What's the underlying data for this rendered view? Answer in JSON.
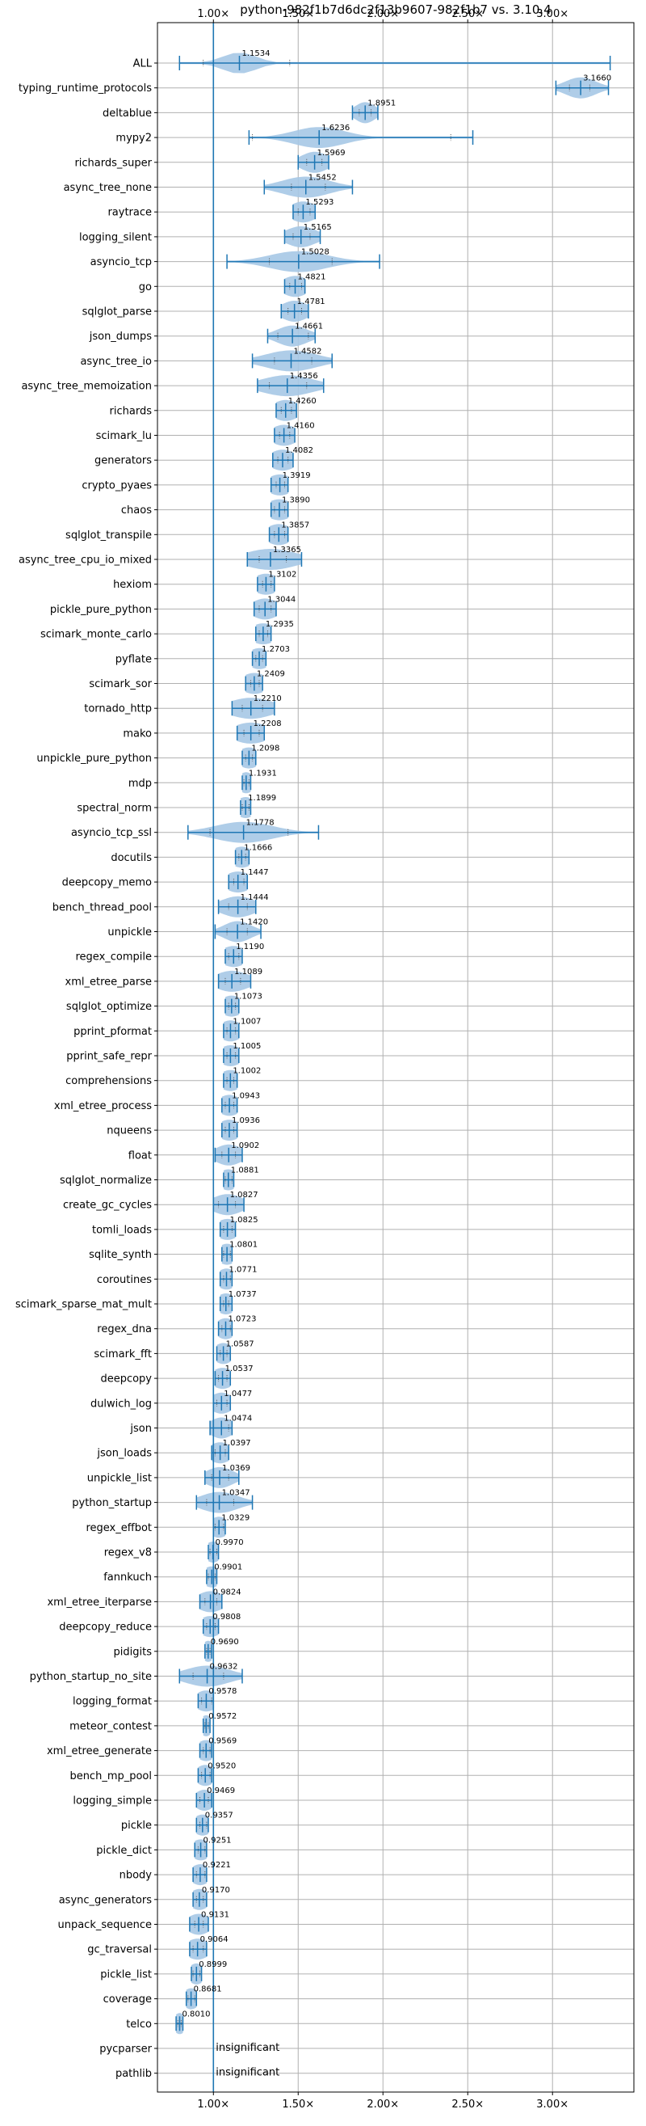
{
  "chart_data": {
    "type": "violin",
    "title": "python-982f1b7d6dc2f13b9607-982f1b7 vs. 3.10.4",
    "xlabel": "",
    "ylabel": "",
    "xlim": [
      0.67,
      3.48
    ],
    "x_ticks": [
      1.0,
      1.5,
      2.0,
      2.5,
      3.0
    ],
    "x_tick_labels": [
      "1.00×",
      "1.50×",
      "2.00×",
      "2.50×",
      "3.00×"
    ],
    "reference_line": 1.0,
    "grid": true,
    "color": "#1f77b4",
    "violin_color": "#a6c8e6",
    "benchmarks": [
      {
        "name": "ALL",
        "mean": 1.1534,
        "label": "1.1534",
        "min": 0.8,
        "max": 3.34,
        "q1": 0.94,
        "q3": 1.45,
        "spread": 0.1
      },
      {
        "name": "typing_runtime_protocols",
        "mean": 3.166,
        "label": "3.1660",
        "min": 3.02,
        "max": 3.33,
        "q1": 3.1,
        "q3": 3.22,
        "spread": 0.09
      },
      {
        "name": "deltablue",
        "mean": 1.8951,
        "label": "1.8951",
        "min": 1.82,
        "max": 1.97,
        "q1": 1.86,
        "q3": 1.93,
        "spread": 0.06
      },
      {
        "name": "mypy2",
        "mean": 1.6236,
        "label": "1.6236",
        "min": 1.21,
        "max": 2.53,
        "q1": 1.23,
        "q3": 2.4,
        "spread": 0.15
      },
      {
        "name": "richards_super",
        "mean": 1.5969,
        "label": "1.5969",
        "min": 1.5,
        "max": 1.68,
        "q1": 1.55,
        "q3": 1.64,
        "spread": 0.08
      },
      {
        "name": "async_tree_none",
        "mean": 1.5452,
        "label": "1.5452",
        "min": 1.3,
        "max": 1.82,
        "q1": 1.46,
        "q3": 1.66,
        "spread": 0.14
      },
      {
        "name": "raytrace",
        "mean": 1.5293,
        "label": "1.5293",
        "min": 1.47,
        "max": 1.6,
        "q1": 1.5,
        "q3": 1.57,
        "spread": 0.08
      },
      {
        "name": "logging_silent",
        "mean": 1.5165,
        "label": "1.5165",
        "min": 1.42,
        "max": 1.63,
        "q1": 1.47,
        "q3": 1.57,
        "spread": 0.09
      },
      {
        "name": "asyncio_tcp",
        "mean": 1.5028,
        "label": "1.5028",
        "min": 1.08,
        "max": 1.98,
        "q1": 1.33,
        "q3": 1.7,
        "spread": 0.17
      },
      {
        "name": "go",
        "mean": 1.4821,
        "label": "1.4821",
        "min": 1.42,
        "max": 1.54,
        "q1": 1.45,
        "q3": 1.52,
        "spread": 0.08
      },
      {
        "name": "sqlglot_parse",
        "mean": 1.4781,
        "label": "1.4781",
        "min": 1.4,
        "max": 1.56,
        "q1": 1.44,
        "q3": 1.52,
        "spread": 0.08
      },
      {
        "name": "json_dumps",
        "mean": 1.4661,
        "label": "1.4661",
        "min": 1.32,
        "max": 1.6,
        "q1": 1.38,
        "q3": 1.56,
        "spread": 0.09
      },
      {
        "name": "async_tree_io",
        "mean": 1.4582,
        "label": "1.4582",
        "min": 1.23,
        "max": 1.7,
        "q1": 1.36,
        "q3": 1.58,
        "spread": 0.15
      },
      {
        "name": "async_tree_memoization",
        "mean": 1.4356,
        "label": "1.4356",
        "min": 1.26,
        "max": 1.65,
        "q1": 1.33,
        "q3": 1.55,
        "spread": 0.15
      },
      {
        "name": "richards",
        "mean": 1.426,
        "label": "1.4260",
        "min": 1.37,
        "max": 1.49,
        "q1": 1.4,
        "q3": 1.46,
        "spread": 0.08
      },
      {
        "name": "scimark_lu",
        "mean": 1.416,
        "label": "1.4160",
        "min": 1.36,
        "max": 1.48,
        "q1": 1.39,
        "q3": 1.45,
        "spread": 0.08
      },
      {
        "name": "generators",
        "mean": 1.4082,
        "label": "1.4082",
        "min": 1.35,
        "max": 1.47,
        "q1": 1.38,
        "q3": 1.44,
        "spread": 0.08
      },
      {
        "name": "crypto_pyaes",
        "mean": 1.3919,
        "label": "1.3919",
        "min": 1.34,
        "max": 1.44,
        "q1": 1.37,
        "q3": 1.42,
        "spread": 0.08
      },
      {
        "name": "chaos",
        "mean": 1.389,
        "label": "1.3890",
        "min": 1.34,
        "max": 1.44,
        "q1": 1.36,
        "q3": 1.42,
        "spread": 0.08
      },
      {
        "name": "sqlglot_transpile",
        "mean": 1.3857,
        "label": "1.3857",
        "min": 1.33,
        "max": 1.44,
        "q1": 1.36,
        "q3": 1.42,
        "spread": 0.08
      },
      {
        "name": "async_tree_cpu_io_mixed",
        "mean": 1.3365,
        "label": "1.3365",
        "min": 1.2,
        "max": 1.52,
        "q1": 1.27,
        "q3": 1.43,
        "spread": 0.15
      },
      {
        "name": "hexiom",
        "mean": 1.3102,
        "label": "1.3102",
        "min": 1.26,
        "max": 1.36,
        "q1": 1.29,
        "q3": 1.34,
        "spread": 0.08
      },
      {
        "name": "pickle_pure_python",
        "mean": 1.3044,
        "label": "1.3044",
        "min": 1.24,
        "max": 1.37,
        "q1": 1.27,
        "q3": 1.34,
        "spread": 0.08
      },
      {
        "name": "scimark_monte_carlo",
        "mean": 1.2935,
        "label": "1.2935",
        "min": 1.25,
        "max": 1.34,
        "q1": 1.27,
        "q3": 1.32,
        "spread": 0.08
      },
      {
        "name": "pyflate",
        "mean": 1.2703,
        "label": "1.2703",
        "min": 1.23,
        "max": 1.31,
        "q1": 1.25,
        "q3": 1.29,
        "spread": 0.07
      },
      {
        "name": "scimark_sor",
        "mean": 1.2409,
        "label": "1.2409",
        "min": 1.19,
        "max": 1.29,
        "q1": 1.22,
        "q3": 1.27,
        "spread": 0.08
      },
      {
        "name": "tornado_http",
        "mean": 1.221,
        "label": "1.2210",
        "min": 1.11,
        "max": 1.36,
        "q1": 1.17,
        "q3": 1.29,
        "spread": 0.13
      },
      {
        "name": "mako",
        "mean": 1.2208,
        "label": "1.2208",
        "min": 1.14,
        "max": 1.3,
        "q1": 1.18,
        "q3": 1.27,
        "spread": 0.11
      },
      {
        "name": "unpickle_pure_python",
        "mean": 1.2098,
        "label": "1.2098",
        "min": 1.17,
        "max": 1.25,
        "q1": 1.19,
        "q3": 1.23,
        "spread": 0.07
      },
      {
        "name": "mdp",
        "mean": 1.1931,
        "label": "1.1931",
        "min": 1.17,
        "max": 1.22,
        "q1": 1.18,
        "q3": 1.21,
        "spread": 0.05
      },
      {
        "name": "spectral_norm",
        "mean": 1.1899,
        "label": "1.1899",
        "min": 1.16,
        "max": 1.22,
        "q1": 1.17,
        "q3": 1.21,
        "spread": 0.06
      },
      {
        "name": "asyncio_tcp_ssl",
        "mean": 1.1778,
        "label": "1.1778",
        "min": 0.85,
        "max": 1.62,
        "q1": 0.98,
        "q3": 1.44,
        "spread": 0.17
      },
      {
        "name": "docutils",
        "mean": 1.1666,
        "label": "1.1666",
        "min": 1.13,
        "max": 1.21,
        "q1": 1.15,
        "q3": 1.19,
        "spread": 0.07
      },
      {
        "name": "deepcopy_memo",
        "mean": 1.1447,
        "label": "1.1447",
        "min": 1.09,
        "max": 1.2,
        "q1": 1.12,
        "q3": 1.18,
        "spread": 0.08
      },
      {
        "name": "bench_thread_pool",
        "mean": 1.1444,
        "label": "1.1444",
        "min": 1.03,
        "max": 1.25,
        "q1": 1.09,
        "q3": 1.2,
        "spread": 0.1
      },
      {
        "name": "unpickle",
        "mean": 1.142,
        "label": "1.1420",
        "min": 1.01,
        "max": 1.28,
        "q1": 1.08,
        "q3": 1.2,
        "spread": 0.08
      },
      {
        "name": "regex_compile",
        "mean": 1.119,
        "label": "1.1190",
        "min": 1.07,
        "max": 1.17,
        "q1": 1.09,
        "q3": 1.15,
        "spread": 0.08
      },
      {
        "name": "xml_etree_parse",
        "mean": 1.1089,
        "label": "1.1089",
        "min": 1.03,
        "max": 1.22,
        "q1": 1.07,
        "q3": 1.16,
        "spread": 0.1
      },
      {
        "name": "sqlglot_optimize",
        "mean": 1.1073,
        "label": "1.1073",
        "min": 1.07,
        "max": 1.15,
        "q1": 1.09,
        "q3": 1.13,
        "spread": 0.07
      },
      {
        "name": "pprint_pformat",
        "mean": 1.1007,
        "label": "1.1007",
        "min": 1.06,
        "max": 1.15,
        "q1": 1.08,
        "q3": 1.13,
        "spread": 0.07
      },
      {
        "name": "pprint_safe_repr",
        "mean": 1.1005,
        "label": "1.1005",
        "min": 1.06,
        "max": 1.15,
        "q1": 1.08,
        "q3": 1.13,
        "spread": 0.07
      },
      {
        "name": "comprehensions",
        "mean": 1.1002,
        "label": "1.1002",
        "min": 1.06,
        "max": 1.14,
        "q1": 1.08,
        "q3": 1.12,
        "spread": 0.07
      },
      {
        "name": "xml_etree_process",
        "mean": 1.0943,
        "label": "1.0943",
        "min": 1.05,
        "max": 1.14,
        "q1": 1.07,
        "q3": 1.12,
        "spread": 0.07
      },
      {
        "name": "nqueens",
        "mean": 1.0936,
        "label": "1.0936",
        "min": 1.05,
        "max": 1.14,
        "q1": 1.07,
        "q3": 1.12,
        "spread": 0.07
      },
      {
        "name": "float",
        "mean": 1.0902,
        "label": "1.0902",
        "min": 1.01,
        "max": 1.17,
        "q1": 1.05,
        "q3": 1.13,
        "spread": 0.08
      },
      {
        "name": "sqlglot_normalize",
        "mean": 1.0881,
        "label": "1.0881",
        "min": 1.06,
        "max": 1.12,
        "q1": 1.07,
        "q3": 1.11,
        "spread": 0.06
      },
      {
        "name": "create_gc_cycles",
        "mean": 1.0827,
        "label": "1.0827",
        "min": 1.0,
        "max": 1.18,
        "q1": 1.03,
        "q3": 1.13,
        "spread": 0.09
      },
      {
        "name": "tomli_loads",
        "mean": 1.0825,
        "label": "1.0825",
        "min": 1.04,
        "max": 1.13,
        "q1": 1.06,
        "q3": 1.11,
        "spread": 0.07
      },
      {
        "name": "sqlite_synth",
        "mean": 1.0801,
        "label": "1.0801",
        "min": 1.05,
        "max": 1.11,
        "q1": 1.06,
        "q3": 1.1,
        "spread": 0.06
      },
      {
        "name": "coroutines",
        "mean": 1.0771,
        "label": "1.0771",
        "min": 1.04,
        "max": 1.11,
        "q1": 1.06,
        "q3": 1.1,
        "spread": 0.06
      },
      {
        "name": "scimark_sparse_mat_mult",
        "mean": 1.0737,
        "label": "1.0737",
        "min": 1.04,
        "max": 1.11,
        "q1": 1.06,
        "q3": 1.09,
        "spread": 0.06
      },
      {
        "name": "regex_dna",
        "mean": 1.0723,
        "label": "1.0723",
        "min": 1.03,
        "max": 1.11,
        "q1": 1.05,
        "q3": 1.1,
        "spread": 0.06
      },
      {
        "name": "scimark_fft",
        "mean": 1.0587,
        "label": "1.0587",
        "min": 1.02,
        "max": 1.1,
        "q1": 1.04,
        "q3": 1.08,
        "spread": 0.06
      },
      {
        "name": "deepcopy",
        "mean": 1.0537,
        "label": "1.0537",
        "min": 1.01,
        "max": 1.1,
        "q1": 1.03,
        "q3": 1.08,
        "spread": 0.07
      },
      {
        "name": "dulwich_log",
        "mean": 1.0477,
        "label": "1.0477",
        "min": 1.0,
        "max": 1.1,
        "q1": 1.02,
        "q3": 1.08,
        "spread": 0.07
      },
      {
        "name": "json",
        "mean": 1.0474,
        "label": "1.0474",
        "min": 0.98,
        "max": 1.11,
        "q1": 1.0,
        "q3": 1.09,
        "spread": 0.07
      },
      {
        "name": "json_loads",
        "mean": 1.0397,
        "label": "1.0397",
        "min": 0.99,
        "max": 1.09,
        "q1": 1.01,
        "q3": 1.07,
        "spread": 0.07
      },
      {
        "name": "unpickle_list",
        "mean": 1.0369,
        "label": "1.0369",
        "min": 0.95,
        "max": 1.15,
        "q1": 0.99,
        "q3": 1.09,
        "spread": 0.08
      },
      {
        "name": "python_startup",
        "mean": 1.0347,
        "label": "1.0347",
        "min": 0.9,
        "max": 1.23,
        "q1": 0.96,
        "q3": 1.12,
        "spread": 0.11
      },
      {
        "name": "regex_effbot",
        "mean": 1.0329,
        "label": "1.0329",
        "min": 1.0,
        "max": 1.07,
        "q1": 1.01,
        "q3": 1.06,
        "spread": 0.06
      },
      {
        "name": "regex_v8",
        "mean": 0.997,
        "label": "0.9970",
        "min": 0.97,
        "max": 1.03,
        "q1": 0.98,
        "q3": 1.02,
        "spread": 0.05
      },
      {
        "name": "fannkuch",
        "mean": 0.9901,
        "label": "0.9901",
        "min": 0.96,
        "max": 1.02,
        "q1": 0.97,
        "q3": 1.01,
        "spread": 0.06
      },
      {
        "name": "xml_etree_iterparse",
        "mean": 0.9824,
        "label": "0.9824",
        "min": 0.92,
        "max": 1.05,
        "q1": 0.95,
        "q3": 1.02,
        "spread": 0.08
      },
      {
        "name": "deepcopy_reduce",
        "mean": 0.9808,
        "label": "0.9808",
        "min": 0.94,
        "max": 1.03,
        "q1": 0.96,
        "q3": 1.01,
        "spread": 0.07
      },
      {
        "name": "pidigits",
        "mean": 0.969,
        "label": "0.9690",
        "min": 0.95,
        "max": 0.99,
        "q1": 0.96,
        "q3": 0.98,
        "spread": 0.04
      },
      {
        "name": "python_startup_no_site",
        "mean": 0.9632,
        "label": "0.9632",
        "min": 0.8,
        "max": 1.17,
        "q1": 0.88,
        "q3": 1.06,
        "spread": 0.13
      },
      {
        "name": "logging_format",
        "mean": 0.9578,
        "label": "0.9578",
        "min": 0.91,
        "max": 1.0,
        "q1": 0.93,
        "q3": 0.99,
        "spread": 0.07
      },
      {
        "name": "meteor_contest",
        "mean": 0.9572,
        "label": "0.9572",
        "min": 0.94,
        "max": 0.98,
        "q1": 0.95,
        "q3": 0.97,
        "spread": 0.04
      },
      {
        "name": "xml_etree_generate",
        "mean": 0.9569,
        "label": "0.9569",
        "min": 0.92,
        "max": 0.99,
        "q1": 0.94,
        "q3": 0.98,
        "spread": 0.06
      },
      {
        "name": "bench_mp_pool",
        "mean": 0.952,
        "label": "0.9520",
        "min": 0.91,
        "max": 0.99,
        "q1": 0.93,
        "q3": 0.98,
        "spread": 0.06
      },
      {
        "name": "logging_simple",
        "mean": 0.9469,
        "label": "0.9469",
        "min": 0.9,
        "max": 0.99,
        "q1": 0.92,
        "q3": 0.97,
        "spread": 0.06
      },
      {
        "name": "pickle",
        "mean": 0.9357,
        "label": "0.9357",
        "min": 0.9,
        "max": 0.97,
        "q1": 0.92,
        "q3": 0.96,
        "spread": 0.06
      },
      {
        "name": "pickle_dict",
        "mean": 0.9251,
        "label": "0.9251",
        "min": 0.89,
        "max": 0.96,
        "q1": 0.91,
        "q3": 0.95,
        "spread": 0.06
      },
      {
        "name": "nbody",
        "mean": 0.9221,
        "label": "0.9221",
        "min": 0.88,
        "max": 0.96,
        "q1": 0.9,
        "q3": 0.95,
        "spread": 0.06
      },
      {
        "name": "async_generators",
        "mean": 0.917,
        "label": "0.9170",
        "min": 0.88,
        "max": 0.96,
        "q1": 0.9,
        "q3": 0.94,
        "spread": 0.06
      },
      {
        "name": "unpack_sequence",
        "mean": 0.9131,
        "label": "0.9131",
        "min": 0.86,
        "max": 0.97,
        "q1": 0.89,
        "q3": 0.94,
        "spread": 0.07
      },
      {
        "name": "gc_traversal",
        "mean": 0.9064,
        "label": "0.9064",
        "min": 0.86,
        "max": 0.96,
        "q1": 0.88,
        "q3": 0.94,
        "spread": 0.07
      },
      {
        "name": "pickle_list",
        "mean": 0.8999,
        "label": "0.8999",
        "min": 0.87,
        "max": 0.93,
        "q1": 0.88,
        "q3": 0.92,
        "spread": 0.05
      },
      {
        "name": "coverage",
        "mean": 0.8681,
        "label": "0.8681",
        "min": 0.84,
        "max": 0.9,
        "q1": 0.85,
        "q3": 0.89,
        "spread": 0.05
      },
      {
        "name": "telco",
        "mean": 0.801,
        "label": "0.8010",
        "min": 0.78,
        "max": 0.82,
        "q1": 0.79,
        "q3": 0.81,
        "spread": 0.04
      },
      {
        "name": "pycparser",
        "mean": null,
        "label": "insignificant"
      },
      {
        "name": "pathlib",
        "mean": null,
        "label": "insignificant"
      }
    ]
  }
}
